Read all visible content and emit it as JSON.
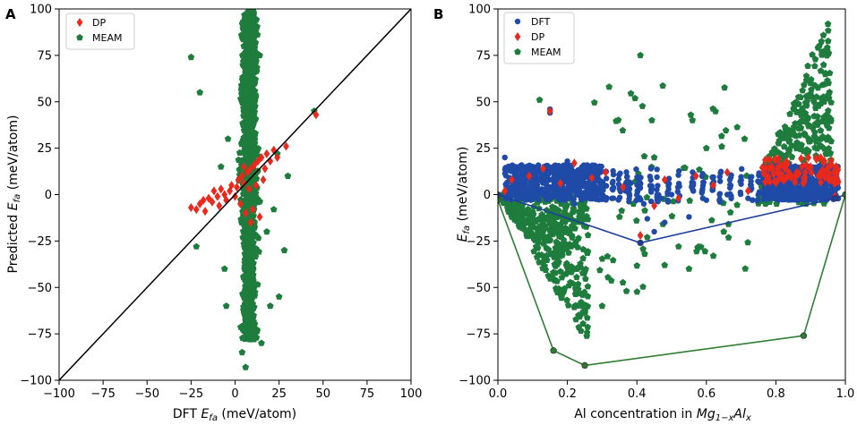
{
  "chart_data": [
    {
      "panel_label": "A",
      "type": "scatter",
      "xlabel_prefix": "DFT",
      "xlabel_symbol": "E",
      "xlabel_sub": "fa",
      "xlabel_suffix": "(meV/atom)",
      "ylabel_prefix": "Predicted",
      "ylabel_symbol": "E",
      "ylabel_sub": "fa",
      "ylabel_suffix": "(meV/atom)",
      "xlim": [
        -100,
        100
      ],
      "ylim": [
        -100,
        100
      ],
      "xticks": [
        -100,
        -75,
        -50,
        -25,
        0,
        25,
        50,
        75,
        100
      ],
      "yticks": [
        -100,
        -75,
        -50,
        -25,
        0,
        25,
        50,
        75,
        100
      ],
      "tick_labels": [
        "−100",
        "−75",
        "−50",
        "−25",
        "0",
        "25",
        "50",
        "75",
        "100"
      ],
      "legend": {
        "location": "top-left",
        "entries": [
          "DP",
          "MEAM"
        ]
      },
      "reference_line": {
        "from": [
          -100,
          -100
        ],
        "to": [
          100,
          100
        ],
        "color": "#000000",
        "label": "y = x"
      },
      "series": [
        {
          "name": "DP",
          "marker": "diamond",
          "color": "#e8291c",
          "points": [
            [
              -25,
              -7
            ],
            [
              -22,
              -8
            ],
            [
              -20,
              -5
            ],
            [
              -18,
              -3
            ],
            [
              -17,
              -9
            ],
            [
              -15,
              -2
            ],
            [
              -13,
              -4
            ],
            [
              -12,
              2
            ],
            [
              -10,
              -1
            ],
            [
              -9,
              -6
            ],
            [
              -8,
              3
            ],
            [
              -6,
              0
            ],
            [
              -5,
              -3
            ],
            [
              -3,
              2
            ],
            [
              -2,
              5
            ],
            [
              0,
              -1
            ],
            [
              1,
              4
            ],
            [
              2,
              8
            ],
            [
              4,
              10
            ],
            [
              5,
              6
            ],
            [
              7,
              12
            ],
            [
              9,
              14
            ],
            [
              11,
              16
            ],
            [
              13,
              18
            ],
            [
              15,
              20
            ],
            [
              17,
              14
            ],
            [
              18,
              22
            ],
            [
              20,
              18
            ],
            [
              22,
              24
            ],
            [
              24,
              20
            ],
            [
              29,
              26
            ],
            [
              46,
              43
            ],
            [
              3,
              -5
            ],
            [
              6,
              -10
            ],
            [
              8,
              3
            ],
            [
              10,
              -8
            ],
            [
              12,
              5
            ],
            [
              14,
              -12
            ],
            [
              16,
              8
            ],
            [
              5,
              15
            ],
            [
              9,
              -15
            ]
          ]
        },
        {
          "name": "MEAM",
          "marker": "pentagon",
          "color": "#1e7c3c",
          "points": [
            [
              -25,
              74
            ],
            [
              -20,
              55
            ],
            [
              -22,
              -28
            ],
            [
              45,
              45
            ],
            [
              22,
              -8
            ],
            [
              30,
              10
            ],
            [
              25,
              -55
            ],
            [
              20,
              -60
            ],
            [
              -5,
              -60
            ],
            [
              -8,
              15
            ],
            [
              28,
              -30
            ],
            [
              6,
              -93
            ],
            [
              4,
              -85
            ],
            [
              15,
              -80
            ],
            [
              10,
              98
            ],
            [
              8,
              95
            ],
            [
              12,
              90
            ],
            [
              5,
              80
            ],
            [
              14,
              75
            ],
            [
              18,
              -20
            ],
            [
              -6,
              -40
            ],
            [
              -4,
              30
            ],
            [
              24,
              22
            ]
          ],
          "cloud": {
            "x_center": 8,
            "x_spread": 6,
            "y_range": [
              -78,
              100
            ]
          }
        }
      ]
    },
    {
      "panel_label": "B",
      "type": "scatter",
      "xlabel_prefix": "Al concentration in",
      "xlabel_formula": "Mg",
      "xlabel_formula_sub1": "1−x",
      "xlabel_formula_mid": "Al",
      "xlabel_formula_sub2": "x",
      "ylabel_symbol": "E",
      "ylabel_sub": "fa",
      "ylabel_suffix": "(meV/atom)",
      "xlim": [
        0.0,
        1.0
      ],
      "ylim": [
        -100,
        100
      ],
      "xticks": [
        0.0,
        0.2,
        0.4,
        0.6,
        0.8,
        1.0
      ],
      "xtick_labels": [
        "0.0",
        "0.2",
        "0.4",
        "0.6",
        "0.8",
        "1.0"
      ],
      "yticks": [
        -100,
        -75,
        -50,
        -25,
        0,
        25,
        50,
        75,
        100
      ],
      "tick_labels": [
        "−100",
        "−75",
        "−50",
        "−25",
        "0",
        "25",
        "50",
        "75",
        "100"
      ],
      "legend": {
        "location": "top-left",
        "entries": [
          "DFT",
          "DP",
          "MEAM"
        ]
      },
      "hulls": [
        {
          "name": "DFT hull",
          "color": "#1f3f9e",
          "points": [
            [
              0.0,
              0.0
            ],
            [
              0.41,
              -26
            ],
            [
              0.97,
              -2
            ],
            [
              1.0,
              0.0
            ]
          ]
        },
        {
          "name": "MEAM hull",
          "color": "#2e7d32",
          "points": [
            [
              0.0,
              -3
            ],
            [
              0.16,
              -84
            ],
            [
              0.25,
              -92
            ],
            [
              0.88,
              -76
            ],
            [
              1.0,
              0.0
            ]
          ]
        }
      ],
      "series": [
        {
          "name": "DFT",
          "marker": "circle",
          "color": "#1f4aa8",
          "points": [
            [
              0.0,
              0.0
            ],
            [
              0.41,
              -26
            ],
            [
              0.97,
              -2
            ],
            [
              0.15,
              46
            ],
            [
              0.15,
              44
            ],
            [
              0.42,
              -5
            ],
            [
              0.43,
              -13
            ],
            [
              0.45,
              -20
            ],
            [
              0.48,
              -15
            ],
            [
              0.47,
              -2
            ],
            [
              0.5,
              0
            ],
            [
              0.35,
              3
            ],
            [
              0.22,
              -5
            ],
            [
              0.55,
              -12
            ],
            [
              0.6,
              -3
            ],
            [
              0.66,
              0
            ],
            [
              0.72,
              -2
            ],
            [
              0.02,
              20
            ],
            [
              0.07,
              5
            ],
            [
              0.12,
              12
            ],
            [
              0.2,
              18
            ],
            [
              0.28,
              8
            ]
          ],
          "band": {
            "x_ranges": [
              [
                0.02,
                0.3
              ],
              [
                0.76,
                0.98
              ]
            ],
            "y_range": [
              -3,
              16
            ]
          },
          "columns": [
            0.3,
            0.31,
            0.33,
            0.35,
            0.37,
            0.38,
            0.4,
            0.41,
            0.44,
            0.46,
            0.49,
            0.52,
            0.56,
            0.59,
            0.62,
            0.64,
            0.67,
            0.7,
            0.73,
            0.75
          ]
        },
        {
          "name": "DP",
          "marker": "diamond",
          "color": "#e8291c",
          "points": [
            [
              0.15,
              45
            ],
            [
              0.02,
              2
            ],
            [
              0.04,
              8
            ],
            [
              0.09,
              10
            ],
            [
              0.13,
              14
            ],
            [
              0.18,
              6
            ],
            [
              0.22,
              17
            ],
            [
              0.27,
              9
            ],
            [
              0.31,
              12
            ],
            [
              0.36,
              4
            ],
            [
              0.41,
              -22
            ],
            [
              0.45,
              -6
            ],
            [
              0.48,
              8
            ],
            [
              0.52,
              -2
            ],
            [
              0.57,
              10
            ],
            [
              0.62,
              5
            ],
            [
              0.66,
              12
            ],
            [
              0.72,
              2
            ],
            [
              0.78,
              14
            ],
            [
              0.82,
              16
            ],
            [
              0.86,
              12
            ],
            [
              0.9,
              15
            ],
            [
              0.94,
              18
            ],
            [
              0.97,
              -1
            ]
          ]
        },
        {
          "name": "MEAM",
          "marker": "pentagon",
          "color": "#1e7c3c",
          "points": [
            [
              0.41,
              75
            ],
            [
              0.32,
              58
            ],
            [
              0.12,
              51
            ],
            [
              0.25,
              -92
            ],
            [
              0.16,
              -84
            ],
            [
              0.88,
              -76
            ],
            [
              0.56,
              40
            ],
            [
              0.71,
              30
            ],
            [
              0.6,
              25
            ],
            [
              0.55,
              -40
            ],
            [
              0.43,
              -23
            ],
            [
              0.37,
              -52
            ],
            [
              0.48,
              -38
            ],
            [
              0.35,
              -12
            ],
            [
              0.39,
              -5
            ],
            [
              0.65,
              -20
            ],
            [
              0.52,
              -28
            ],
            [
              0.3,
              -60
            ],
            [
              0.62,
              -33
            ],
            [
              0.45,
              20
            ]
          ],
          "wedge": {
            "x_range": [
              0.0,
              0.26
            ],
            "y_top": 0,
            "y_bottom_at_max": -80
          },
          "cloud_right": {
            "x_range": [
              0.72,
              0.96
            ],
            "y_range": [
              -5,
              100
            ]
          },
          "cloud_mid": {
            "x_range": [
              0.26,
              0.72
            ],
            "y_range": [
              -55,
              60
            ],
            "count": 60
          }
        }
      ]
    }
  ]
}
